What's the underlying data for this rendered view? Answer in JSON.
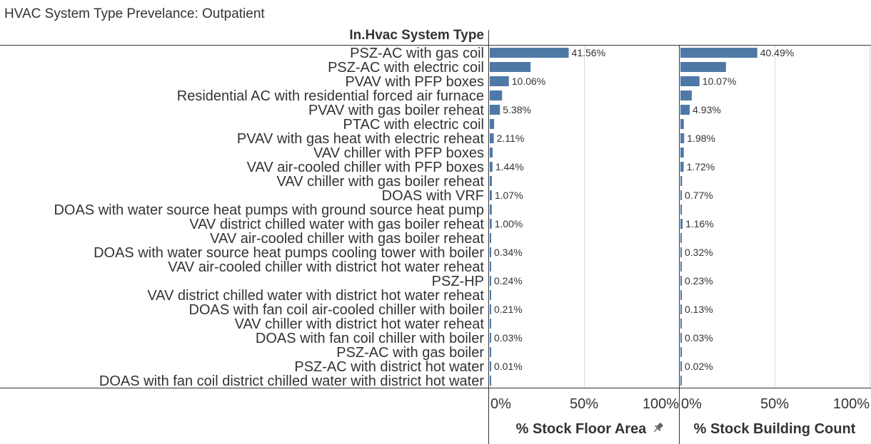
{
  "title": "HVAC System Type Prevelance: Outpatient",
  "row_header": "In.Hvac System Type",
  "colors": {
    "bar": "#4e79a7",
    "grid": "#d9d9d9",
    "axis": "#333333",
    "text": "#333333"
  },
  "pin_icon": "pin-icon",
  "chart_data": {
    "type": "bar",
    "orientation": "horizontal",
    "categories": [
      "PSZ-AC with gas coil",
      "PSZ-AC with electric coil",
      "PVAV with PFP boxes",
      "Residential AC with residential forced air furnace",
      "PVAV with gas boiler reheat",
      "PTAC with electric coil",
      "PVAV with gas heat with electric reheat",
      "VAV chiller with PFP boxes",
      "VAV air-cooled chiller with PFP boxes",
      "VAV chiller with gas boiler reheat",
      "DOAS with VRF",
      "DOAS with water source heat pumps with ground source heat pump",
      "VAV district chilled water with gas boiler reheat",
      "VAV air-cooled chiller with gas boiler reheat",
      "DOAS with water source heat pumps cooling tower with boiler",
      "VAV air-cooled chiller with district hot water reheat",
      "PSZ-HP",
      "VAV district chilled water with district hot water reheat",
      "DOAS with fan coil air-cooled chiller with boiler",
      "VAV chiller with district hot water reheat",
      "DOAS with fan coil chiller with boiler",
      "PSZ-AC with gas boiler",
      "PSZ-AC with district hot water",
      "DOAS with fan coil district chilled water with district hot water"
    ],
    "series": [
      {
        "name": "% Stock Floor Area",
        "values": [
          41.56,
          21.5,
          10.06,
          6.5,
          5.38,
          2.3,
          2.11,
          1.5,
          1.44,
          1.1,
          1.07,
          1.05,
          1.0,
          0.5,
          0.34,
          0.3,
          0.24,
          0.22,
          0.21,
          0.1,
          0.03,
          0.02,
          0.01,
          0.005
        ],
        "labels": [
          "41.56%",
          "",
          "10.06%",
          "",
          "5.38%",
          "",
          "2.11%",
          "",
          "1.44%",
          "",
          "1.07%",
          "",
          "1.00%",
          "",
          "0.34%",
          "",
          "0.24%",
          "",
          "0.21%",
          "",
          "0.03%",
          "",
          "0.01%",
          ""
        ]
      },
      {
        "name": "% Stock Building Count",
        "values": [
          40.49,
          24.0,
          10.07,
          6.0,
          4.93,
          1.8,
          1.98,
          1.8,
          1.72,
          0.9,
          0.77,
          0.8,
          1.16,
          0.5,
          0.32,
          0.3,
          0.23,
          0.2,
          0.13,
          0.1,
          0.03,
          0.02,
          0.02,
          0.01
        ],
        "labels": [
          "40.49%",
          "",
          "10.07%",
          "",
          "4.93%",
          "",
          "1.98%",
          "",
          "1.72%",
          "",
          "0.77%",
          "",
          "1.16%",
          "",
          "0.32%",
          "",
          "0.23%",
          "",
          "0.13%",
          "",
          "0.03%",
          "",
          "0.02%",
          ""
        ]
      }
    ],
    "xlim": [
      0,
      100
    ],
    "ticks": [
      "0%",
      "50%",
      "100%"
    ],
    "tick_values": [
      0,
      50,
      100
    ],
    "grid": true
  }
}
